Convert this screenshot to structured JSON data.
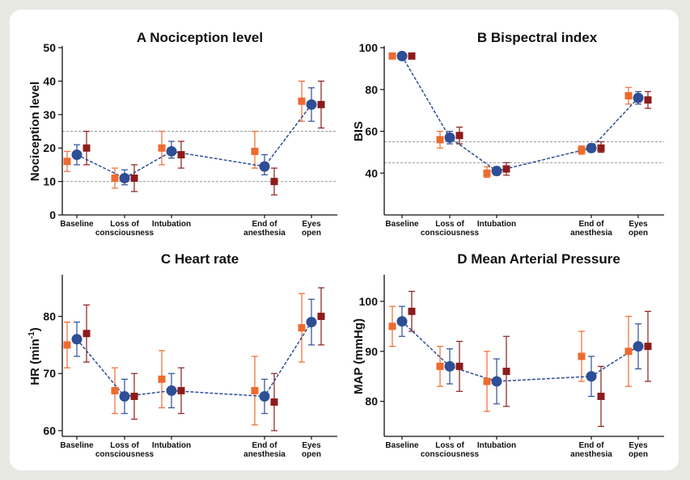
{
  "colors": {
    "series_1": "#ee6a2e",
    "series_2": "#2e4e95",
    "series_3": "#8c1c1c",
    "reference_line": "#9a9a9a",
    "frame": "#ffffff",
    "background": "#e9e9e4"
  },
  "chart_data": [
    {
      "type": "scatter",
      "title": "A  Nociception level",
      "ylabel": "Nociception level",
      "xlabel": "",
      "categories": [
        "Baseline",
        "Loss of\nconsciousness",
        "Intubation",
        "End of\nanesthesia",
        "Eyes\nopen"
      ],
      "ylim": [
        0,
        50
      ],
      "yticks": [
        0,
        10,
        20,
        30,
        40,
        50
      ],
      "reference_lines": [
        10,
        25
      ],
      "series": [
        {
          "marker": "square",
          "color": "#ee6a2e",
          "values": [
            16,
            11,
            20,
            19,
            34
          ],
          "lower": [
            13,
            8,
            15,
            14,
            28
          ],
          "upper": [
            19,
            14,
            25,
            25,
            40
          ]
        },
        {
          "marker": "circle",
          "color": "#2e4e95",
          "connected": true,
          "values": [
            18,
            11,
            19,
            14.5,
            33
          ],
          "lower": [
            15,
            9,
            17,
            12,
            28
          ],
          "upper": [
            21,
            13.5,
            22,
            18,
            38
          ]
        },
        {
          "marker": "square",
          "color": "#8c1c1c",
          "values": [
            20,
            11,
            18,
            10,
            33
          ],
          "lower": [
            15,
            7,
            14,
            6,
            26
          ],
          "upper": [
            25,
            15,
            22,
            14,
            40
          ]
        }
      ]
    },
    {
      "type": "scatter",
      "title": "B  Bispectral index",
      "ylabel": "BIS",
      "xlabel": "",
      "categories": [
        "Baseline",
        "Loss of\nconsciousness",
        "Intubation",
        "End of\nanesthesia",
        "Eyes\nopen"
      ],
      "ylim": [
        20,
        100
      ],
      "yticks": [
        40,
        60,
        80,
        100
      ],
      "reference_lines": [
        45,
        55
      ],
      "series": [
        {
          "marker": "square",
          "color": "#ee6a2e",
          "values": [
            96,
            56,
            40,
            51,
            77
          ],
          "lower": [
            96,
            52,
            38,
            49,
            73
          ],
          "upper": [
            96,
            60,
            43,
            53,
            81
          ]
        },
        {
          "marker": "circle",
          "color": "#2e4e95",
          "connected": true,
          "values": [
            96,
            57,
            41,
            52,
            76
          ],
          "lower": [
            96,
            54,
            39,
            50,
            73
          ],
          "upper": [
            96,
            60,
            43,
            54,
            79
          ]
        },
        {
          "marker": "square",
          "color": "#8c1c1c",
          "values": [
            96,
            58,
            42,
            52,
            75
          ],
          "lower": [
            96,
            54,
            39,
            50,
            71
          ],
          "upper": [
            96,
            62,
            45,
            55,
            79
          ]
        }
      ]
    },
    {
      "type": "scatter",
      "title": "C  Heart rate",
      "ylabel": "HR (min",
      "ylabel_sup": "-1",
      "ylabel_end": ")",
      "xlabel": "",
      "categories": [
        "Baseline",
        "Loss of\nconsciousness",
        "Intubation",
        "End of\nanesthesia",
        "Eyes\nopen"
      ],
      "ylim": [
        59,
        87
      ],
      "yticks": [
        60,
        70,
        80
      ],
      "reference_lines": [],
      "series": [
        {
          "marker": "square",
          "color": "#ee6a2e",
          "values": [
            75,
            67,
            69,
            67,
            78
          ],
          "lower": [
            71,
            63,
            64,
            61,
            72
          ],
          "upper": [
            79,
            71,
            74,
            73,
            84
          ]
        },
        {
          "marker": "circle",
          "color": "#2e4e95",
          "connected": true,
          "values": [
            76,
            66,
            67,
            66,
            79
          ],
          "lower": [
            73,
            63,
            64,
            63,
            75
          ],
          "upper": [
            79,
            69,
            70,
            69,
            83
          ]
        },
        {
          "marker": "square",
          "color": "#8c1c1c",
          "values": [
            77,
            66,
            67,
            65,
            80
          ],
          "lower": [
            72,
            62,
            63,
            60,
            75
          ],
          "upper": [
            82,
            70,
            71,
            70,
            85
          ]
        }
      ]
    },
    {
      "type": "scatter",
      "title": "D  Mean Arterial Pressure",
      "ylabel": "MAP (mmHg)",
      "xlabel": "",
      "categories": [
        "Baseline",
        "Loss of\nconsciousness",
        "Intubation",
        "End of\nanesthesia",
        "Eyes\nopen"
      ],
      "ylim": [
        73,
        105
      ],
      "yticks": [
        80,
        90,
        100
      ],
      "reference_lines": [],
      "series": [
        {
          "marker": "square",
          "color": "#ee6a2e",
          "values": [
            95,
            87,
            84,
            89,
            90
          ],
          "lower": [
            91,
            83,
            78,
            84,
            83
          ],
          "upper": [
            99,
            91,
            90,
            94,
            97
          ]
        },
        {
          "marker": "circle",
          "color": "#2e4e95",
          "connected": true,
          "values": [
            96,
            87,
            84,
            85,
            91
          ],
          "lower": [
            93,
            83.5,
            79.5,
            81,
            86.5
          ],
          "upper": [
            99,
            90.5,
            88.5,
            89,
            95.5
          ]
        },
        {
          "marker": "square",
          "color": "#8c1c1c",
          "values": [
            98,
            87,
            86,
            81,
            91
          ],
          "lower": [
            94,
            82,
            79,
            75,
            84
          ],
          "upper": [
            102,
            92,
            93,
            87,
            98
          ]
        }
      ]
    }
  ]
}
